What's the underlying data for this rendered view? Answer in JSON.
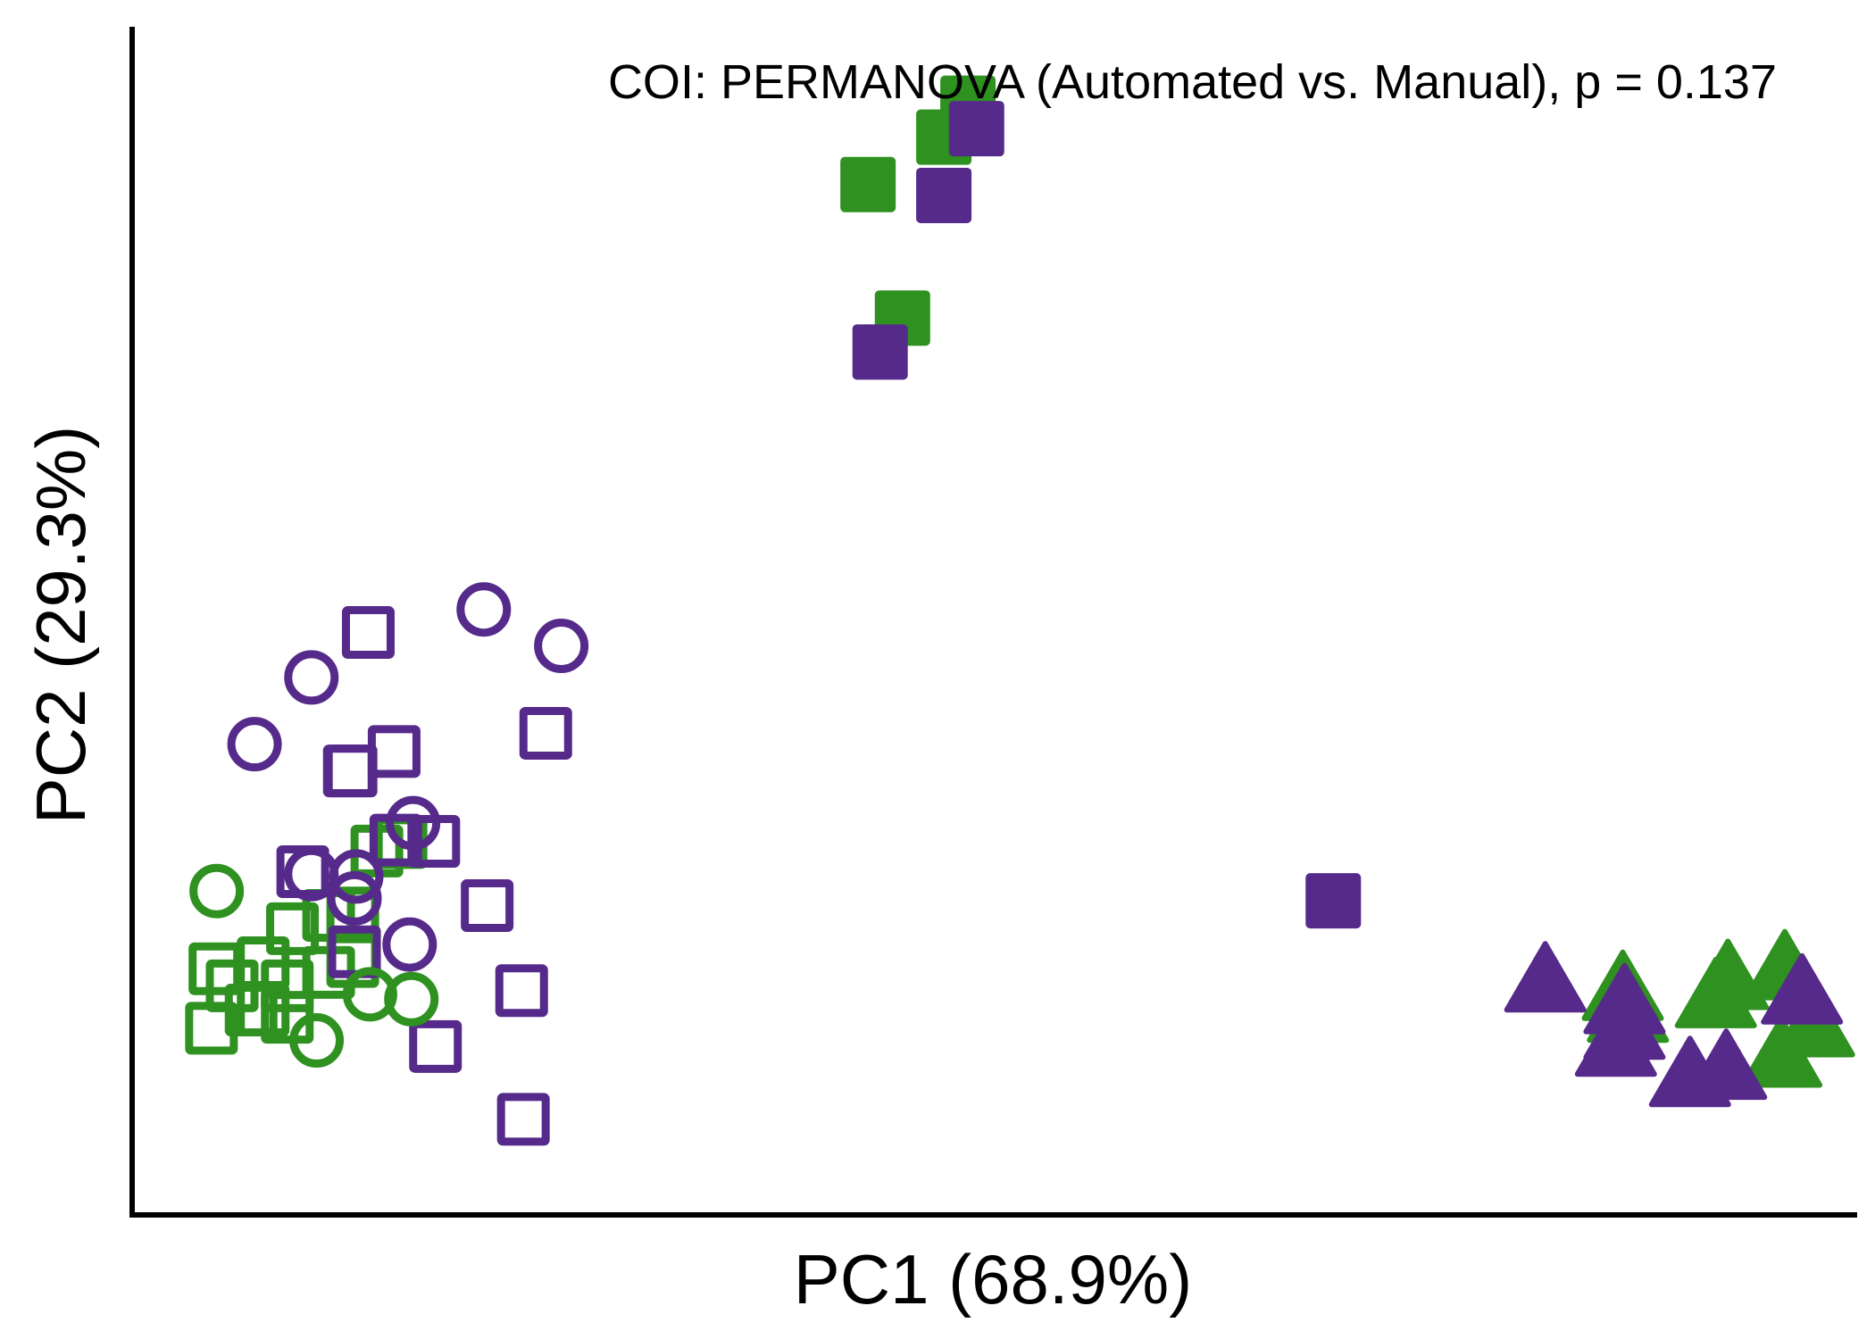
{
  "chart_data": {
    "type": "scatter",
    "annotation": "COI: PERMANOVA (Automated vs. Manual), p = 0.137",
    "xlabel": "PC1 (68.9%)",
    "ylabel": "PC2 (29.3%)",
    "xlim": [
      0,
      1
    ],
    "ylim": [
      0,
      1
    ],
    "grid": false,
    "legend": "none",
    "colors": {
      "green": "#2e9120",
      "purple": "#562a8b"
    },
    "series": [
      {
        "color": "green",
        "shape": "square",
        "fill": "solid",
        "points": [
          [
            0.484,
            0.915
          ],
          [
            0.47,
            0.887
          ],
          [
            0.426,
            0.848
          ],
          [
            0.446,
            0.738
          ]
        ]
      },
      {
        "color": "purple",
        "shape": "square",
        "fill": "solid",
        "points": [
          [
            0.489,
            0.894
          ],
          [
            0.47,
            0.839
          ],
          [
            0.433,
            0.71
          ],
          [
            0.696,
            0.258
          ]
        ]
      },
      {
        "color": "green",
        "shape": "square",
        "fill": "open",
        "points": [
          [
            0.141,
            0.299
          ],
          [
            0.113,
            0.199
          ],
          [
            0.047,
            0.202
          ],
          [
            0.089,
            0.188
          ],
          [
            0.075,
            0.168
          ],
          [
            0.057,
            0.188
          ],
          [
            0.068,
            0.168
          ],
          [
            0.045,
            0.153
          ],
          [
            0.089,
            0.162
          ],
          [
            0.127,
            0.248
          ],
          [
            0.155,
            0.306
          ],
          [
            0.092,
            0.235
          ],
          [
            0.113,
            0.246
          ],
          [
            0.075,
            0.207
          ],
          [
            0.127,
            0.208
          ]
        ]
      },
      {
        "color": "purple",
        "shape": "square",
        "fill": "open",
        "points": [
          [
            0.136,
            0.479
          ],
          [
            0.126,
            0.365
          ],
          [
            0.151,
            0.381
          ],
          [
            0.239,
            0.396
          ],
          [
            0.152,
            0.308
          ],
          [
            0.174,
            0.307
          ],
          [
            0.098,
            0.282
          ],
          [
            0.128,
            0.216
          ],
          [
            0.205,
            0.254
          ],
          [
            0.225,
            0.184
          ],
          [
            0.175,
            0.138
          ],
          [
            0.226,
            0.078
          ],
          [
            0.125,
            0.365
          ]
        ]
      },
      {
        "color": "green",
        "shape": "circle",
        "fill": "open",
        "points": [
          [
            0.048,
            0.266
          ],
          [
            0.137,
            0.181
          ],
          [
            0.161,
            0.177
          ],
          [
            0.106,
            0.143
          ]
        ]
      },
      {
        "color": "purple",
        "shape": "circle",
        "fill": "open",
        "points": [
          [
            0.203,
            0.498
          ],
          [
            0.248,
            0.468
          ],
          [
            0.103,
            0.442
          ],
          [
            0.07,
            0.387
          ],
          [
            0.162,
            0.322
          ],
          [
            0.103,
            0.28
          ],
          [
            0.129,
            0.278
          ],
          [
            0.128,
            0.26
          ],
          [
            0.16,
            0.222
          ]
        ]
      },
      {
        "color": "green",
        "shape": "triangle",
        "fill": "solid",
        "points": [
          [
            0.918,
            0.177
          ],
          [
            0.867,
            0.165
          ],
          [
            0.864,
            0.183
          ],
          [
            0.958,
            0.2
          ],
          [
            0.925,
            0.192
          ],
          [
            0.975,
            0.153
          ],
          [
            0.956,
            0.128
          ]
        ]
      },
      {
        "color": "purple",
        "shape": "triangle",
        "fill": "solid",
        "points": [
          [
            0.819,
            0.19
          ],
          [
            0.865,
            0.172
          ],
          [
            0.86,
            0.137
          ],
          [
            0.903,
            0.112
          ],
          [
            0.924,
            0.118
          ],
          [
            0.968,
            0.18
          ],
          [
            0.865,
            0.151
          ]
        ]
      }
    ]
  }
}
